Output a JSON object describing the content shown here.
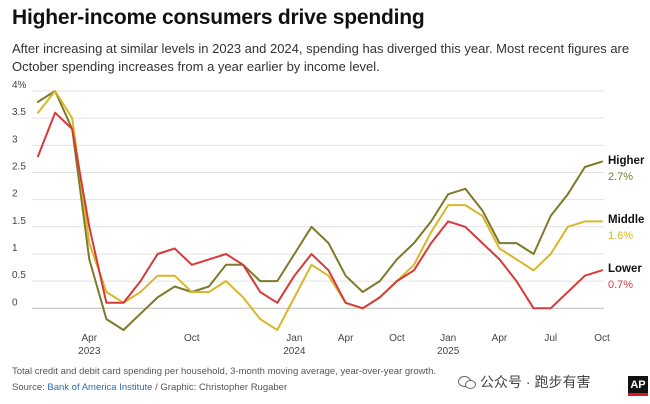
{
  "header": {
    "title": "Higher-income consumers drive spending",
    "subtitle": "After increasing at similar levels in 2023 and 2024, spending has diverged this year. Most recent figures are October spending increases from a year earlier by income level."
  },
  "footer": {
    "note": "Total credit and debit card spending per household, 3-month moving average, year-over-year growth.",
    "source_prefix": "Source: ",
    "source_link": "Bank of America Institute",
    "source_suffix": " / Graphic: Christopher Rugaber",
    "watermark": "公众号 · 跑步有害",
    "logo_text": "AP"
  },
  "chart_data": {
    "type": "line",
    "title": "Higher-income consumers drive spending",
    "xlabel": "",
    "ylabel": "",
    "ylim": [
      -0.4,
      4
    ],
    "y_ticks": [
      0,
      0.5,
      1,
      1.5,
      2,
      2.5,
      3,
      3.5,
      4
    ],
    "y_tick_labels": [
      "0",
      "0.5",
      "1",
      "1.5",
      "2",
      "2.5",
      "3",
      "3.5",
      "4%"
    ],
    "x_start": "Jan 2023",
    "x_end": "Oct 2025",
    "x_ticks": [
      {
        "index": 3,
        "label": "Apr",
        "year": "2023"
      },
      {
        "index": 9,
        "label": "Oct",
        "year": ""
      },
      {
        "index": 15,
        "label": "Jan",
        "year": "2024"
      },
      {
        "index": 18,
        "label": "Apr",
        "year": ""
      },
      {
        "index": 21,
        "label": "Oct",
        "year": ""
      },
      {
        "index": 24,
        "label": "Jan",
        "year": "2025"
      },
      {
        "index": 27,
        "label": "Apr",
        "year": ""
      },
      {
        "index": 30,
        "label": "Jul",
        "year": ""
      },
      {
        "index": 33,
        "label": "Oct",
        "year": ""
      }
    ],
    "series": [
      {
        "name": "Higher",
        "end_label": "2.7%",
        "color": "#7d7a2a",
        "values": [
          3.8,
          4.0,
          3.3,
          0.9,
          -0.2,
          -0.4,
          -0.1,
          0.2,
          0.4,
          0.3,
          0.4,
          0.8,
          0.8,
          0.5,
          0.5,
          1.0,
          1.5,
          1.2,
          0.6,
          0.3,
          0.5,
          0.9,
          1.2,
          1.6,
          2.1,
          2.2,
          1.8,
          1.2,
          1.2,
          1.0,
          1.7,
          2.1,
          2.6,
          2.7
        ]
      },
      {
        "name": "Middle",
        "end_label": "1.6%",
        "color": "#d9b72b",
        "values": [
          3.6,
          4.0,
          3.5,
          1.2,
          0.3,
          0.1,
          0.3,
          0.6,
          0.6,
          0.3,
          0.3,
          0.5,
          0.2,
          -0.2,
          -0.4,
          0.2,
          0.8,
          0.6,
          0.1,
          0.0,
          0.2,
          0.5,
          0.8,
          1.4,
          1.9,
          1.9,
          1.7,
          1.1,
          0.9,
          0.7,
          1.0,
          1.5,
          1.6,
          1.6
        ]
      },
      {
        "name": "Lower",
        "end_label": "0.7%",
        "color": "#d63a3a",
        "values": [
          2.8,
          3.6,
          3.3,
          1.5,
          0.1,
          0.1,
          0.5,
          1.0,
          1.1,
          0.8,
          0.9,
          1.0,
          0.8,
          0.3,
          0.1,
          0.6,
          1.0,
          0.7,
          0.1,
          0.0,
          0.2,
          0.5,
          0.7,
          1.2,
          1.6,
          1.5,
          1.2,
          0.9,
          0.5,
          0.0,
          0.0,
          0.3,
          0.6,
          0.7
        ]
      }
    ]
  }
}
